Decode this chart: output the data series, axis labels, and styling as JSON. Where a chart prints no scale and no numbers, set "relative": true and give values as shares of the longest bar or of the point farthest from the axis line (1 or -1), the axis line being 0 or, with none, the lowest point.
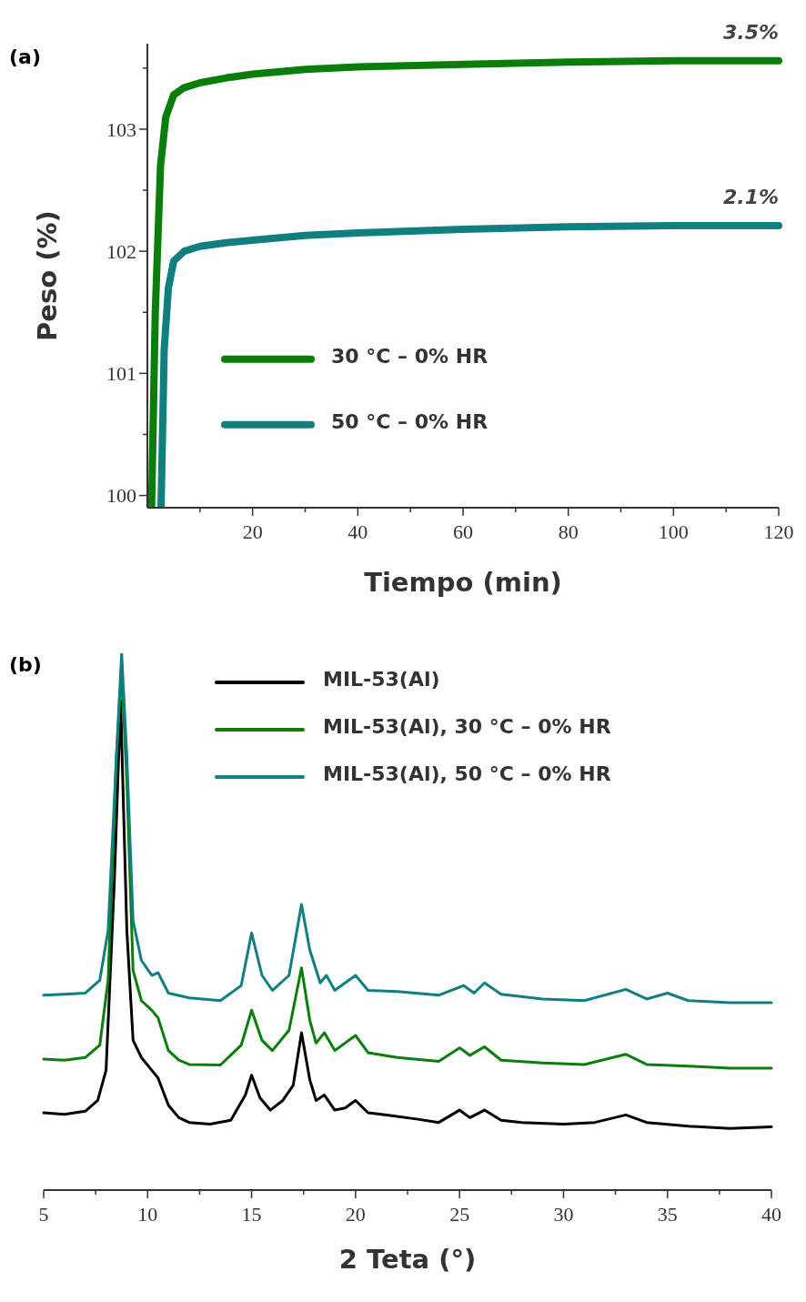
{
  "chart_data": [
    {
      "type": "line",
      "xlabel": "Tiempo (min)",
      "ylabel": "Peso (%)",
      "xlim": [
        0,
        120
      ],
      "ylim": [
        99.9,
        103.7
      ],
      "xticks": [
        {
          "value": 10,
          "label": null
        },
        20,
        {
          "value": 30,
          "label": null
        },
        40,
        {
          "value": 50,
          "label": null
        },
        60,
        {
          "value": 70,
          "label": null
        },
        80,
        {
          "value": 90,
          "label": null
        },
        100,
        {
          "value": 110,
          "label": null
        },
        120
      ],
      "yticks": [
        100,
        {
          "value": 100.5,
          "label": null
        },
        101,
        {
          "value": 101.5,
          "label": null
        },
        102,
        {
          "value": 102.5,
          "label": null
        },
        103,
        {
          "value": 103.5,
          "label": null
        }
      ],
      "grid": false,
      "legend": "left",
      "line_style": "solid",
      "marker": "none",
      "annotations": [
        "(a)",
        {
          "text": "3.5%",
          "x": 120,
          "y": 103.56
        },
        {
          "text": "2.1%",
          "x": 120,
          "y": 102.21
        }
      ],
      "series": [
        {
          "name": "30 °C – 0% HR",
          "color": "#0a7d0a",
          "x": [
            0.8,
            1.5,
            2.5,
            3.5,
            5,
            7,
            10,
            15,
            20,
            30,
            40,
            60,
            80,
            100,
            120
          ],
          "values": [
            99.9,
            101.5,
            102.7,
            103.1,
            103.28,
            103.34,
            103.38,
            103.42,
            103.45,
            103.49,
            103.51,
            103.53,
            103.55,
            103.56,
            103.56
          ]
        },
        {
          "name": "50 °C – 0% HR",
          "color": "#0f7f80",
          "x": [
            2.6,
            3.2,
            4,
            5,
            7,
            10,
            15,
            20,
            30,
            40,
            60,
            80,
            100,
            120
          ],
          "values": [
            99.9,
            101.2,
            101.7,
            101.92,
            102.0,
            102.04,
            102.07,
            102.09,
            102.13,
            102.15,
            102.18,
            102.2,
            102.21,
            102.21
          ]
        }
      ]
    },
    {
      "type": "line",
      "xlabel": "2 Teta (°)",
      "relative": true,
      "xlim": [
        5,
        40
      ],
      "xticks": [
        5,
        {
          "value": 7.5,
          "label": null
        },
        10,
        {
          "value": 12.5,
          "label": null
        },
        15,
        {
          "value": 17.5,
          "label": null
        },
        20,
        {
          "value": 22.5,
          "label": null
        },
        25,
        {
          "value": 27.5,
          "label": null
        },
        30,
        {
          "value": 32.5,
          "label": null
        },
        35,
        {
          "value": 37.5,
          "label": null
        },
        40
      ],
      "grid": false,
      "legend": "top",
      "line_style": "solid",
      "marker": "none",
      "tick_labels": "x",
      "annotations": [
        "(b)"
      ],
      "series": [
        {
          "name": "MIL-53(Al)",
          "color": "#000000",
          "x": [
            5,
            6,
            7,
            7.6,
            8,
            8.4,
            8.7,
            9.0,
            9.3,
            9.7,
            10.2,
            10.5,
            11,
            11.5,
            12,
            13,
            14,
            14.7,
            15.0,
            15.4,
            15.9,
            16.5,
            17.0,
            17.4,
            17.8,
            18.1,
            18.5,
            19.0,
            19.5,
            20.0,
            20.6,
            21.5,
            23,
            24,
            25,
            25.5,
            26.2,
            27,
            28,
            30,
            31.5,
            33,
            34,
            36,
            38,
            40
          ],
          "values": [
            0.144,
            0.141,
            0.147,
            0.167,
            0.223,
            0.577,
            0.912,
            0.484,
            0.279,
            0.247,
            0.223,
            0.209,
            0.158,
            0.135,
            0.126,
            0.123,
            0.13,
            0.177,
            0.214,
            0.172,
            0.149,
            0.167,
            0.195,
            0.293,
            0.205,
            0.167,
            0.177,
            0.149,
            0.153,
            0.167,
            0.144,
            0.14,
            0.132,
            0.126,
            0.149,
            0.135,
            0.149,
            0.13,
            0.126,
            0.123,
            0.126,
            0.14,
            0.126,
            0.119,
            0.115,
            0.118
          ]
        },
        {
          "name": "MIL-53(Al), 30 °C – 0% HR",
          "color": "#0a7d0a",
          "x": [
            5,
            6,
            7,
            7.7,
            8.1,
            8.5,
            8.75,
            9.0,
            9.3,
            9.7,
            10.2,
            10.5,
            11,
            11.5,
            12,
            13.5,
            14.5,
            15.0,
            15.5,
            16,
            16.8,
            17.4,
            17.8,
            18.1,
            18.5,
            19,
            20,
            20.6,
            22,
            24,
            25,
            25.5,
            26.2,
            27,
            29,
            31,
            33,
            34,
            36,
            38,
            40
          ],
          "values": [
            0.244,
            0.242,
            0.247,
            0.27,
            0.391,
            0.809,
            0.967,
            0.763,
            0.409,
            0.353,
            0.335,
            0.321,
            0.26,
            0.242,
            0.234,
            0.233,
            0.27,
            0.335,
            0.279,
            0.26,
            0.298,
            0.414,
            0.316,
            0.274,
            0.293,
            0.26,
            0.288,
            0.256,
            0.247,
            0.24,
            0.265,
            0.251,
            0.267,
            0.242,
            0.237,
            0.234,
            0.253,
            0.234,
            0.231,
            0.227,
            0.227
          ]
        },
        {
          "name": "MIL-53(Al), 50 °C – 0% HR",
          "color": "#0f7f80",
          "x": [
            5,
            6,
            7,
            7.7,
            8.1,
            8.5,
            8.75,
            9.0,
            9.3,
            9.7,
            10.2,
            10.5,
            11,
            12,
            13.5,
            14.5,
            15.0,
            15.5,
            16,
            16.8,
            17.4,
            17.8,
            18.3,
            18.6,
            19,
            20,
            20.6,
            22,
            24,
            25.2,
            25.7,
            26.2,
            27,
            29,
            31,
            33,
            34,
            35,
            36,
            38,
            40
          ],
          "values": [
            0.363,
            0.365,
            0.367,
            0.391,
            0.484,
            0.809,
            1,
            0.809,
            0.502,
            0.428,
            0.4,
            0.405,
            0.367,
            0.358,
            0.353,
            0.381,
            0.479,
            0.4,
            0.372,
            0.4,
            0.532,
            0.447,
            0.386,
            0.4,
            0.372,
            0.4,
            0.372,
            0.37,
            0.363,
            0.381,
            0.367,
            0.386,
            0.365,
            0.356,
            0.353,
            0.374,
            0.356,
            0.367,
            0.353,
            0.349,
            0.349
          ]
        }
      ]
    }
  ]
}
